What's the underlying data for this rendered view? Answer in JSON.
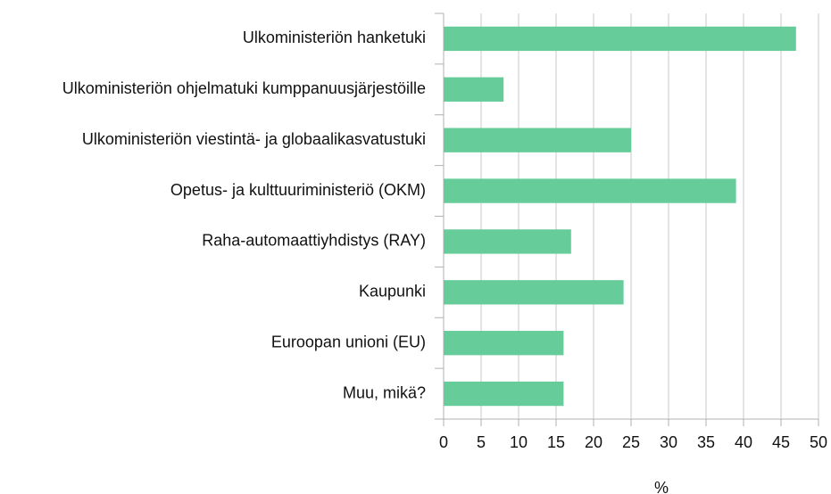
{
  "chart_data": {
    "type": "bar",
    "orientation": "horizontal",
    "categories": [
      "Ulkoministeriön hanketuki",
      "Ulkoministeriön ohjelmatuki kumppanuusjärjestöille",
      "Ulkoministeriön viestintä- ja globaalikasvatustuki",
      "Opetus- ja kulttuuriministeriö (OKM)",
      "Raha-automaattiyhdistys (RAY)",
      "Kaupunki",
      "Euroopan unioni (EU)",
      "Muu, mikä?"
    ],
    "values": [
      47,
      8,
      25,
      39,
      17,
      24,
      16,
      16
    ],
    "color": "#66cc99",
    "x_label": "%",
    "xlim": [
      0,
      50
    ],
    "xticks": [
      0,
      5,
      10,
      15,
      20,
      25,
      30,
      35,
      40,
      45,
      50
    ],
    "grid": true
  }
}
